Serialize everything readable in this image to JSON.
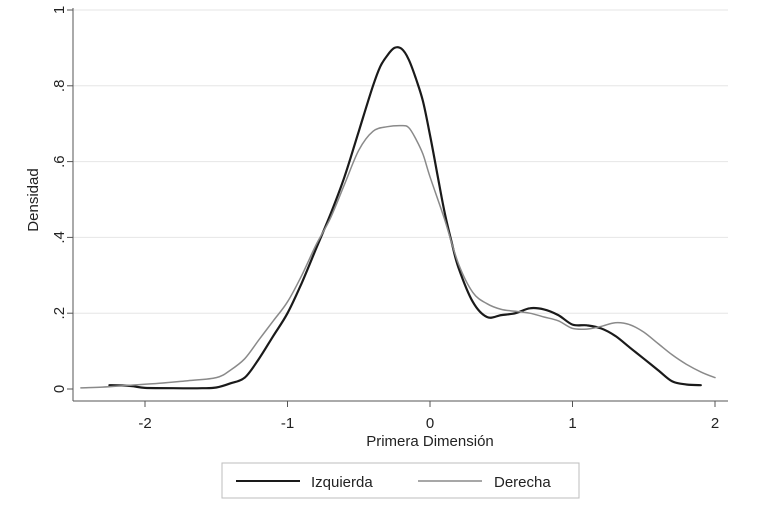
{
  "chart_data": {
    "type": "line",
    "title": "",
    "xlabel": "Primera Dimensión",
    "ylabel": "Densidad",
    "xlim": [
      -2.5,
      2.1
    ],
    "ylim": [
      0,
      1
    ],
    "x_ticks": [
      -2,
      -1,
      0,
      1,
      2
    ],
    "x_tick_labels": [
      "-2",
      "-1",
      "0",
      "1",
      "2"
    ],
    "y_ticks": [
      0,
      0.2,
      0.4,
      0.6,
      0.8,
      1
    ],
    "y_tick_labels": [
      "0",
      ".2",
      ".4",
      ".6",
      ".8",
      "1"
    ],
    "grid": "horizontal",
    "legend_position": "bottom",
    "series": [
      {
        "name": "Izquierda",
        "color": "#1a1a1a",
        "x": [
          -2.25,
          -2.1,
          -2.0,
          -1.8,
          -1.6,
          -1.5,
          -1.4,
          -1.3,
          -1.2,
          -1.1,
          -1.0,
          -0.9,
          -0.8,
          -0.7,
          -0.6,
          -0.5,
          -0.4,
          -0.35,
          -0.3,
          -0.25,
          -0.2,
          -0.15,
          -0.1,
          -0.05,
          0.0,
          0.05,
          0.1,
          0.15,
          0.2,
          0.3,
          0.4,
          0.5,
          0.6,
          0.7,
          0.8,
          0.9,
          1.0,
          1.1,
          1.2,
          1.3,
          1.4,
          1.5,
          1.6,
          1.7,
          1.8,
          1.9
        ],
        "y": [
          0.01,
          0.008,
          0.003,
          0.002,
          0.002,
          0.004,
          0.015,
          0.03,
          0.08,
          0.14,
          0.2,
          0.28,
          0.37,
          0.46,
          0.56,
          0.68,
          0.8,
          0.85,
          0.88,
          0.9,
          0.898,
          0.87,
          0.82,
          0.76,
          0.67,
          0.57,
          0.47,
          0.39,
          0.32,
          0.23,
          0.19,
          0.195,
          0.2,
          0.213,
          0.21,
          0.195,
          0.17,
          0.168,
          0.16,
          0.14,
          0.11,
          0.08,
          0.05,
          0.02,
          0.012,
          0.01
        ]
      },
      {
        "name": "Derecha",
        "color": "#8a8a8a",
        "x": [
          -2.45,
          -2.3,
          -2.1,
          -1.9,
          -1.7,
          -1.5,
          -1.4,
          -1.3,
          -1.2,
          -1.1,
          -1.0,
          -0.9,
          -0.8,
          -0.7,
          -0.6,
          -0.5,
          -0.4,
          -0.3,
          -0.2,
          -0.15,
          -0.1,
          -0.05,
          0.0,
          0.1,
          0.2,
          0.3,
          0.4,
          0.5,
          0.6,
          0.7,
          0.8,
          0.9,
          1.0,
          1.1,
          1.2,
          1.3,
          1.4,
          1.5,
          1.6,
          1.7,
          1.8,
          1.9,
          2.0
        ],
        "y": [
          0.003,
          0.005,
          0.01,
          0.015,
          0.022,
          0.03,
          0.05,
          0.08,
          0.13,
          0.18,
          0.23,
          0.3,
          0.38,
          0.45,
          0.54,
          0.63,
          0.68,
          0.692,
          0.695,
          0.69,
          0.66,
          0.62,
          0.56,
          0.45,
          0.33,
          0.255,
          0.225,
          0.21,
          0.205,
          0.2,
          0.19,
          0.18,
          0.16,
          0.158,
          0.165,
          0.175,
          0.17,
          0.15,
          0.12,
          0.09,
          0.065,
          0.045,
          0.03
        ]
      }
    ]
  }
}
